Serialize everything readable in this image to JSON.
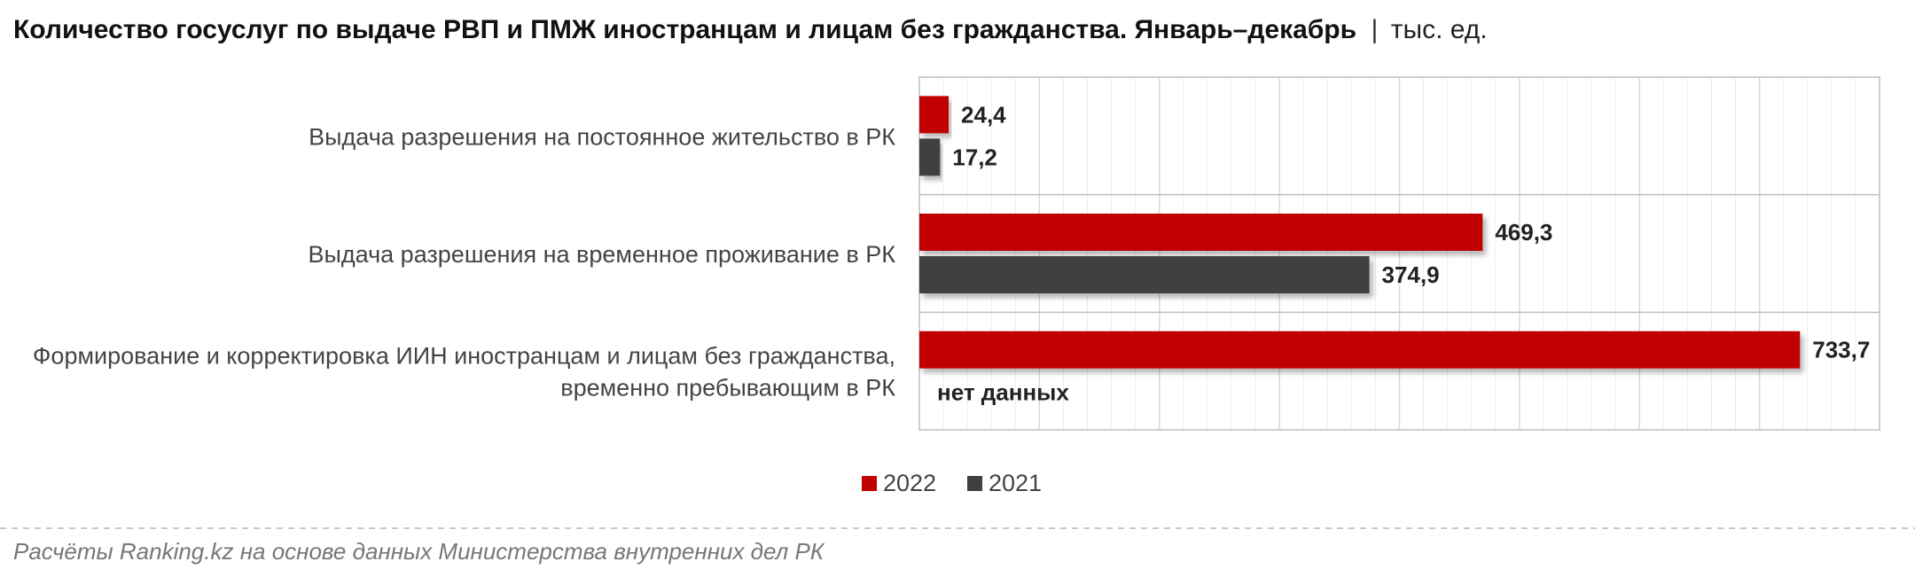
{
  "title": {
    "main": "Количество госуслуг по выдаче РВП и ПМЖ иностранцам и лицам без гражданства. Январь–декабрь",
    "separator": "|",
    "unit": "тыс. ед."
  },
  "colors": {
    "series_2022": "#c00000",
    "series_2021": "#404040",
    "grid": "#d9d9d9",
    "border": "#bfbfbf"
  },
  "chart_data": {
    "type": "bar",
    "orientation": "horizontal",
    "categories": [
      [
        "Выдача разрешения на постоянное жительство в РК"
      ],
      [
        "Выдача разрешения на временное проживание в РК"
      ],
      [
        "Формирование и корректировка ИИН иностранцам и лицам без гражданства,",
        "временно пребывающим в РК"
      ]
    ],
    "series": [
      {
        "name": "2022",
        "values": [
          24.4,
          469.3,
          733.7
        ],
        "labels": [
          "24,4",
          "469,3",
          "733,7"
        ]
      },
      {
        "name": "2021",
        "values": [
          17.2,
          374.9,
          null
        ],
        "labels": [
          "17,2",
          "374,9",
          "нет данных"
        ]
      }
    ],
    "xlim": [
      0,
      800
    ],
    "grid": true,
    "legend": "bottom"
  },
  "source": "Расчёты Ranking.kz на основе данных Министерства внутренних дел РК"
}
